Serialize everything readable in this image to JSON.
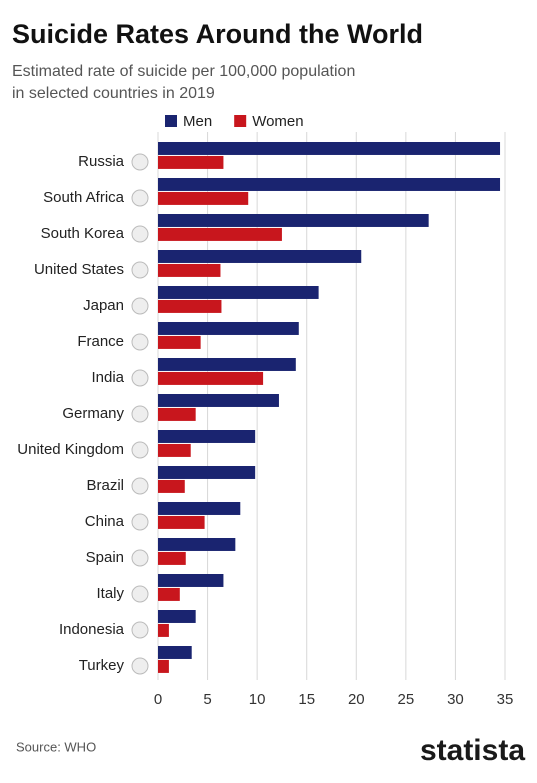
{
  "chart_data": {
    "type": "bar",
    "orientation": "horizontal",
    "title": "Suicide Rates Around the World",
    "subtitle": [
      "Estimated rate of suicide per 100,000 population",
      "in selected countries in 2019"
    ],
    "categories": [
      "Russia",
      "South Africa",
      "South Korea",
      "United States",
      "Japan",
      "France",
      "India",
      "Germany",
      "United Kingdom",
      "Brazil",
      "China",
      "Spain",
      "Italy",
      "Indonesia",
      "Turkey"
    ],
    "series": [
      {
        "name": "Men",
        "color": "#1a2470",
        "values": [
          34.5,
          34.5,
          27.3,
          20.5,
          16.2,
          14.2,
          13.9,
          12.2,
          9.8,
          9.8,
          8.3,
          7.8,
          6.6,
          3.8,
          3.4
        ]
      },
      {
        "name": "Women",
        "color": "#c8161d",
        "values": [
          6.6,
          9.1,
          12.5,
          6.3,
          6.4,
          4.3,
          10.6,
          3.8,
          3.3,
          2.7,
          4.7,
          2.8,
          2.2,
          1.1,
          1.1
        ]
      }
    ],
    "xlim": [
      0,
      35
    ],
    "xticks": [
      0,
      5,
      10,
      15,
      20,
      25,
      30,
      35
    ],
    "grid": true,
    "legend": "top",
    "source": "Source: WHO",
    "logo": "statista"
  }
}
